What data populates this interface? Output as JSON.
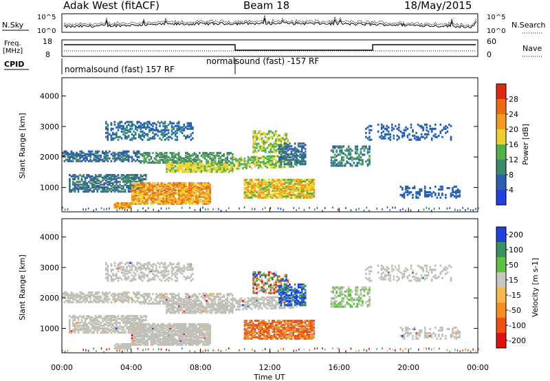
{
  "header": {
    "radar": "Adak West (fitACF)",
    "beam": "Beam 18",
    "date": "18/May/2015"
  },
  "strip_noise": {
    "left_label": "N.Sky",
    "right_label": "N.Search",
    "left_ticks": [
      "10^5",
      "10^0"
    ],
    "right_ticks": [
      "10^5",
      "10^0"
    ]
  },
  "strip_freq": {
    "left_label_1": "Freq.",
    "left_label_2": "[MHz]",
    "right_label": "Nave",
    "left_ticks": [
      "18",
      "8"
    ],
    "right_ticks": [
      "60",
      "0"
    ]
  },
  "strip_cpid": {
    "label": "CPID",
    "segment_1": "normalsound (fast) 157 RF",
    "segment_2": "normalsound (fast) -157 RF"
  },
  "colors": {
    "power_scale": [
      "#1f3fe0",
      "#2a5fb0",
      "#3a8a6a",
      "#52b04a",
      "#f0d030",
      "#f39a1c",
      "#ee6a10",
      "#e02a10"
    ],
    "velocity_scale": [
      "#e01010",
      "#f05010",
      "#f59020",
      "#f7b850",
      "#c8c8c0",
      "#5cc040",
      "#3a9060",
      "#2040e0"
    ],
    "ground_scatter": "#c0c0b8"
  },
  "chart_data": [
    {
      "type": "heatmap",
      "panel": "power",
      "xlabel": "",
      "ylabel": "Slant Range [km]",
      "yticks": [
        "1000",
        "2000",
        "3000",
        "4000"
      ],
      "ylim": [
        200,
        4600
      ],
      "xlim_hours": [
        0,
        24
      ],
      "colorbar_label": "Power [dB]",
      "colorbar_ticks": [
        "4",
        "8",
        "12",
        "16",
        "20",
        "24",
        "28"
      ],
      "colorbar_range": [
        0,
        32
      ]
    },
    {
      "type": "heatmap",
      "panel": "velocity",
      "xlabel": "Time UT",
      "ylabel": "Slant Range [km]",
      "yticks": [
        "1000",
        "2000",
        "3000",
        "4000"
      ],
      "ylim": [
        200,
        4600
      ],
      "xlim_hours": [
        0,
        24
      ],
      "xticks": [
        "00:00",
        "04:00",
        "08:00",
        "12:00",
        "16:00",
        "20:00",
        "00:00"
      ],
      "colorbar_label": "Velocity [m s-1]",
      "colorbar_ticks": [
        "-200",
        "-100",
        "-50",
        "-15",
        "15",
        "50",
        "100",
        "200"
      ],
      "colorbar_range": [
        -250,
        250
      ]
    }
  ]
}
